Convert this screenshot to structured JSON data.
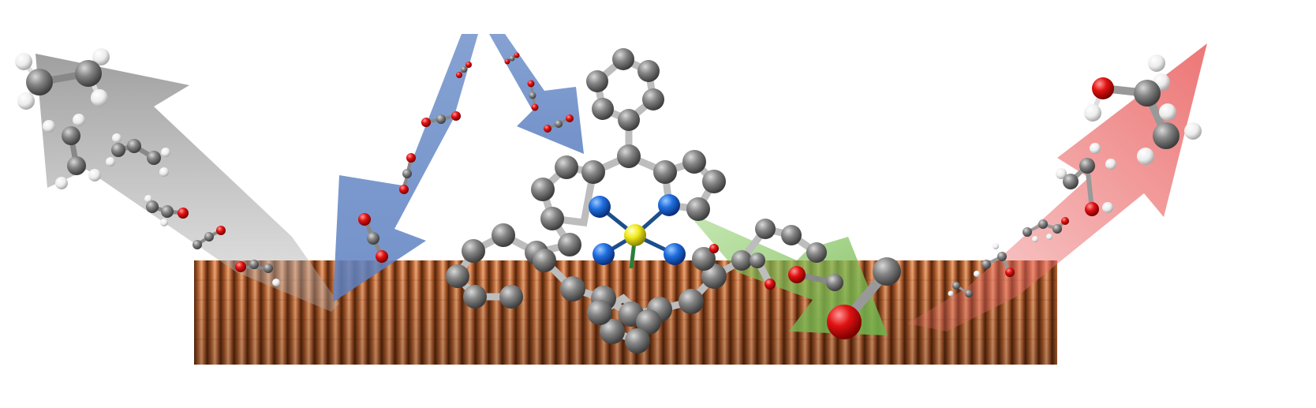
{
  "scene": {
    "kind": "catalysis-schematic",
    "elements": {
      "carbon": "gray",
      "hydrogen": "white",
      "oxygen": "red",
      "nitrogen": "blue",
      "metal_center": "yellow",
      "copper_surface": "copper"
    },
    "arrows": [
      {
        "name": "co2-incoming-arrows",
        "color": "#6f8fc6",
        "direction": "down"
      },
      {
        "name": "hydrocarbon-product-arrow",
        "color": "#9a9a9a",
        "direction": "up-left"
      },
      {
        "name": "co-intermediate-arrow",
        "color": "#7fbf4f",
        "direction": "down-right"
      },
      {
        "name": "alcohol-product-arrow",
        "color": "#ec6f6f",
        "direction": "up-right"
      }
    ],
    "colors": {
      "copper": "#c8703f",
      "copper_dark": "#7e3a16",
      "carbon": "#7d7d7d",
      "oxygen": "#e21212",
      "hydrogen": "#f2f2f2",
      "nitrogen": "#1f6fe0",
      "metal": "#f2ea1a"
    }
  }
}
